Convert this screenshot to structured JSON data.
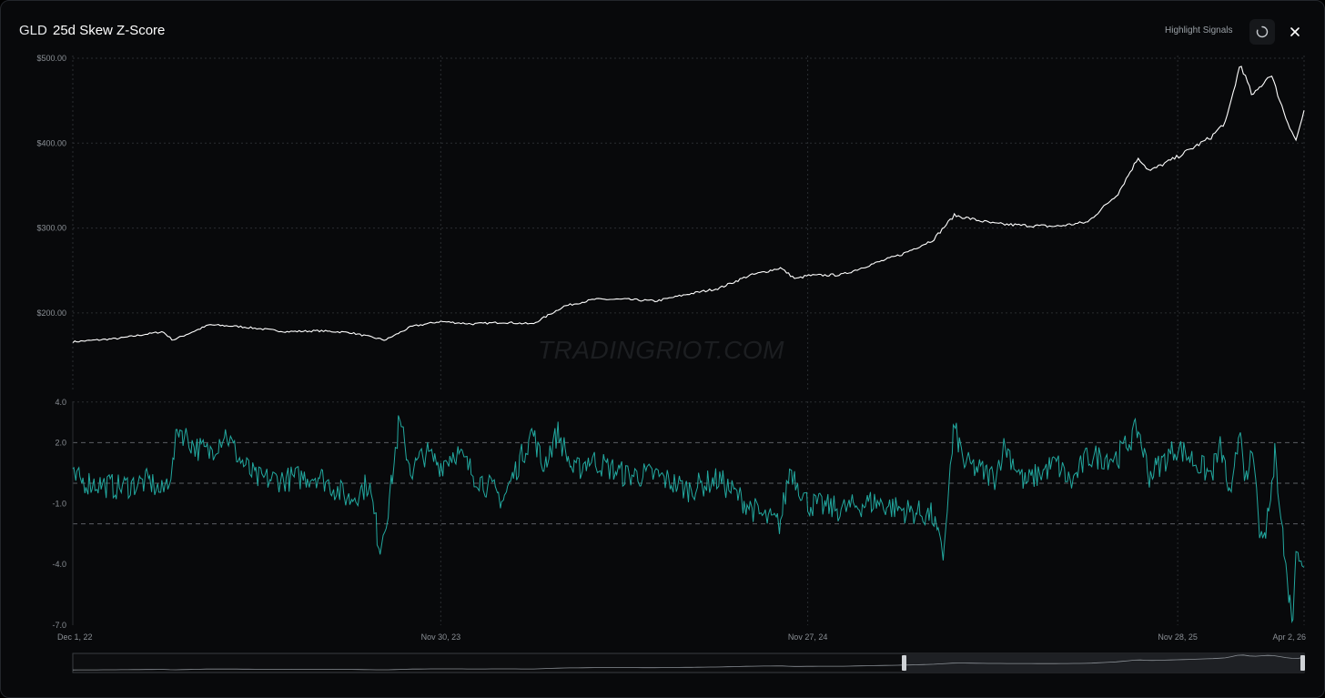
{
  "header": {
    "ticker": "GLD",
    "title": "25d Skew Z-Score",
    "highlight_label": "Highlight Signals"
  },
  "watermark": "TRADINGRIOT.COM",
  "colors": {
    "price": "#ffffff",
    "zscore": "#22a89f",
    "grid": "#2a2d31",
    "axis_text": "#8a8f95"
  },
  "icons": {
    "reload": "reload-icon",
    "close": "close-icon"
  },
  "chart_data": [
    {
      "type": "line",
      "title": "",
      "xlabel": "",
      "ylabel": "",
      "ylim": [
        150,
        500
      ],
      "yticks": [
        200,
        300,
        400,
        500
      ],
      "ytick_labels": [
        "$200.00",
        "$300.00",
        "$400.00",
        "$500.00"
      ],
      "series": [
        {
          "x": [
            "2022-12-01",
            "2023-01-15",
            "2023-02-28",
            "2023-03-10",
            "2023-04-15",
            "2023-05-15",
            "2023-06-30",
            "2023-08-01",
            "2023-09-01",
            "2023-10-06",
            "2023-11-01",
            "2023-11-30",
            "2023-12-31",
            "2024-01-31",
            "2024-02-29",
            "2024-03-31",
            "2024-04-30",
            "2024-05-31",
            "2024-06-30",
            "2024-07-31",
            "2024-08-31",
            "2024-09-30",
            "2024-10-31",
            "2024-11-15",
            "2024-11-27",
            "2024-12-31",
            "2025-01-31",
            "2025-02-28",
            "2025-03-31",
            "2025-04-21",
            "2025-05-31",
            "2025-06-30",
            "2025-07-31",
            "2025-08-31",
            "2025-09-30",
            "2025-10-20",
            "2025-10-31",
            "2025-11-28",
            "2025-12-31",
            "2026-01-15",
            "2026-01-29",
            "2026-02-10",
            "2026-02-28",
            "2026-03-15",
            "2026-03-25",
            "2026-04-02"
          ],
          "y": [
            166,
            170,
            178,
            168,
            186,
            184,
            178,
            179,
            177,
            168,
            184,
            190,
            187,
            189,
            187,
            208,
            216,
            216,
            214,
            222,
            229,
            244,
            253,
            240,
            244,
            245,
            258,
            269,
            286,
            315,
            305,
            303,
            302,
            307,
            341,
            383,
            367,
            384,
            407,
            426,
            494,
            455,
            482,
            430,
            403,
            438
          ]
        }
      ]
    },
    {
      "type": "line",
      "title": "",
      "xlabel": "",
      "ylabel": "",
      "ylim": [
        -7,
        4
      ],
      "yticks": [
        -7,
        -4,
        -1,
        2,
        4
      ],
      "ytick_labels": [
        "-7.0",
        "-4.0",
        "-1.0",
        "2.0",
        "4.0"
      ],
      "reference_lines": [
        2,
        0,
        -2
      ],
      "xtick_labels": [
        "Dec 1, 22",
        "Nov 30, 23",
        "Nov 27, 24",
        "Nov 28, 25",
        "Apr 2, 26"
      ],
      "series": [
        {
          "x": [
            "2022-12-01",
            "2023-01-15",
            "2023-02-15",
            "2023-02-28",
            "2023-03-10",
            "2023-03-15",
            "2023-04-01",
            "2023-04-15",
            "2023-05-01",
            "2023-05-15",
            "2023-06-01",
            "2023-07-01",
            "2023-08-01",
            "2023-09-01",
            "2023-09-20",
            "2023-10-01",
            "2023-10-10",
            "2023-10-20",
            "2023-11-01",
            "2023-11-15",
            "2023-11-30",
            "2023-12-15",
            "2024-01-01",
            "2024-01-31",
            "2024-02-29",
            "2024-03-10",
            "2024-03-25",
            "2024-04-10",
            "2024-04-25",
            "2024-05-31",
            "2024-06-30",
            "2024-07-31",
            "2024-08-31",
            "2024-09-30",
            "2024-10-15",
            "2024-10-31",
            "2024-11-10",
            "2024-11-27",
            "2024-12-31",
            "2025-01-31",
            "2025-02-28",
            "2025-03-31",
            "2025-04-10",
            "2025-04-21",
            "2025-05-01",
            "2025-05-31",
            "2025-06-10",
            "2025-06-30",
            "2025-07-31",
            "2025-08-15",
            "2025-08-31",
            "2025-09-30",
            "2025-10-20",
            "2025-10-31",
            "2025-11-28",
            "2025-12-31",
            "2026-01-10",
            "2026-01-20",
            "2026-01-29",
            "2026-02-05",
            "2026-02-10",
            "2026-02-20",
            "2026-02-28",
            "2026-03-05",
            "2026-03-15",
            "2026-03-22",
            "2026-03-26",
            "2026-04-02"
          ],
          "y": [
            0.2,
            -0.2,
            0.1,
            -0.5,
            0.8,
            2.8,
            1.8,
            1.5,
            2.5,
            1.2,
            0.2,
            0.2,
            0.4,
            -0.8,
            0.0,
            -3.2,
            -1.0,
            3.0,
            0.6,
            1.5,
            0.9,
            1.6,
            0.5,
            -0.8,
            2.6,
            0.8,
            2.5,
            0.5,
            1.2,
            0.4,
            0.4,
            -0.3,
            0.2,
            -1.1,
            -1.7,
            -2.0,
            0.8,
            -1.0,
            -1.3,
            -0.9,
            -1.3,
            -1.6,
            -3.7,
            2.8,
            1.0,
            0.3,
            1.9,
            0.0,
            1.0,
            0.0,
            1.3,
            1.3,
            2.7,
            0.4,
            1.8,
            0.4,
            1.8,
            -1.0,
            3.0,
            -0.5,
            1.7,
            -3.5,
            -0.8,
            1.6,
            -4.2,
            -6.8,
            -2.8,
            -4.0
          ]
        }
      ]
    }
  ]
}
